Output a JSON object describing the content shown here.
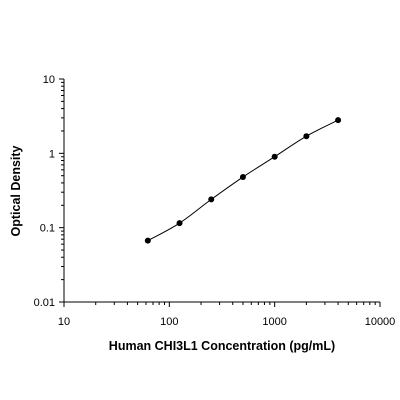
{
  "chart_data": {
    "type": "scatter",
    "title": "",
    "xlabel": "Human CHI3L1 Concentration (pg/mL)",
    "ylabel": "Optical Density",
    "xscale": "log",
    "yscale": "log",
    "xlim": [
      10,
      10000
    ],
    "ylim": [
      0.01,
      10
    ],
    "xticks": [
      10,
      100,
      1000,
      10000
    ],
    "xtick_labels": [
      "10",
      "100",
      "1000",
      "10000"
    ],
    "yticks": [
      0.01,
      0.1,
      1,
      10
    ],
    "ytick_labels": [
      "0.01",
      "0.1",
      "1",
      "10"
    ],
    "grid": false,
    "fit_curve": true,
    "color": "#000000",
    "series": [
      {
        "x": [
          62.5,
          125,
          250,
          500,
          1000,
          2000,
          4000
        ],
        "y": [
          0.067,
          0.115,
          0.24,
          0.48,
          0.9,
          1.7,
          2.8
        ]
      }
    ]
  }
}
